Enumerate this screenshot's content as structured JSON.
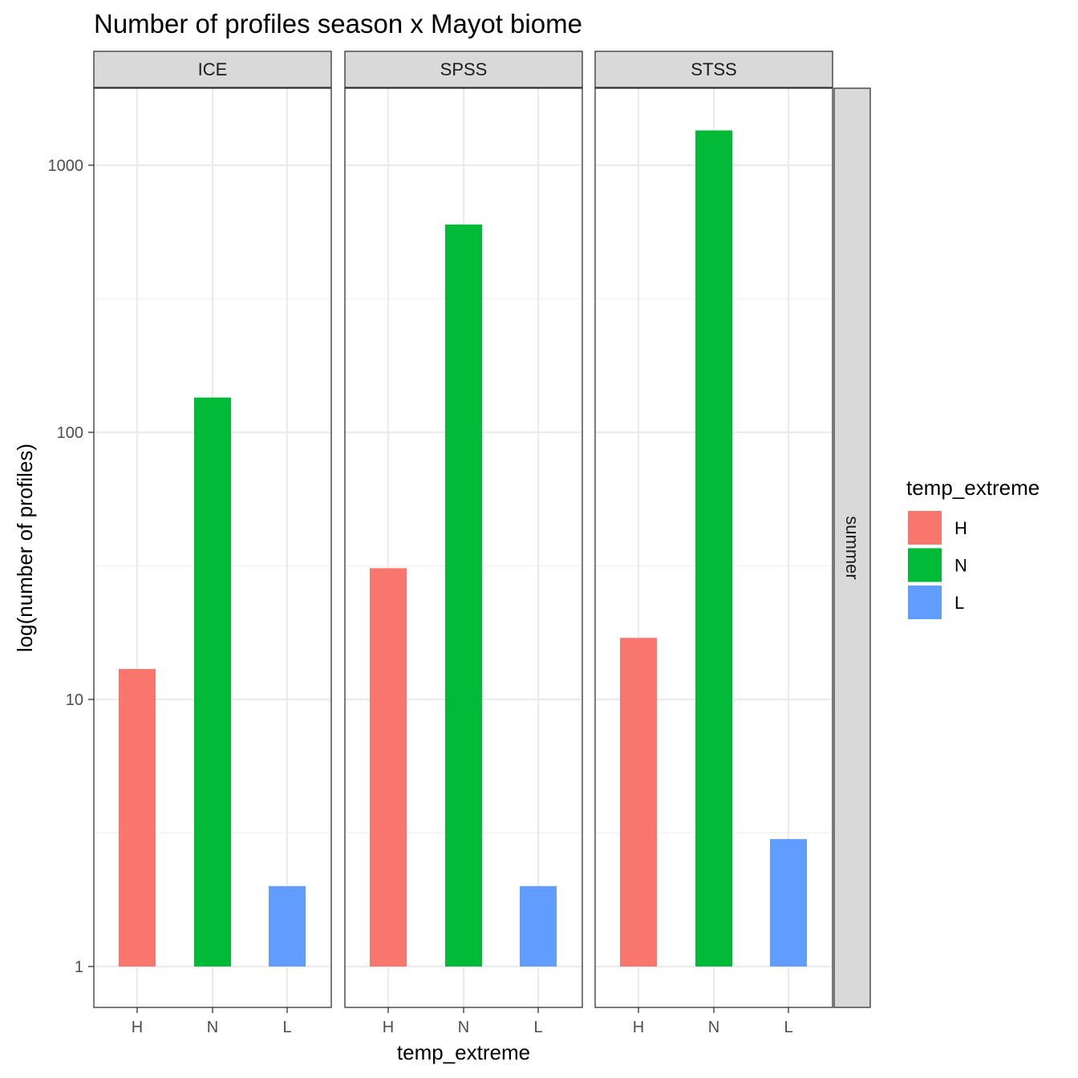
{
  "chart_data": {
    "type": "bar",
    "title": "Number of profiles season x Mayot biome",
    "xlabel": "temp_extreme",
    "ylabel": "log(number of profiles)",
    "y_scale": "log10",
    "ylim": [
      0.6,
      2000
    ],
    "y_ticks": [
      1,
      10,
      100,
      1000
    ],
    "y_tick_labels": [
      "1",
      "10",
      "100",
      "1000"
    ],
    "categories": [
      "H",
      "N",
      "L"
    ],
    "facet_row_label": "summer",
    "grid": true,
    "legend_position": "right",
    "legend": {
      "title": "temp_extreme",
      "entries": [
        {
          "label": "H",
          "color": "#F8766D"
        },
        {
          "label": "N",
          "color": "#00BA38"
        },
        {
          "label": "L",
          "color": "#619CFF"
        }
      ]
    },
    "panels": [
      {
        "name": "ICE",
        "values": [
          13,
          135,
          2
        ]
      },
      {
        "name": "SPSS",
        "values": [
          31,
          600,
          2
        ]
      },
      {
        "name": "STSS",
        "values": [
          17,
          1350,
          3
        ]
      }
    ]
  }
}
